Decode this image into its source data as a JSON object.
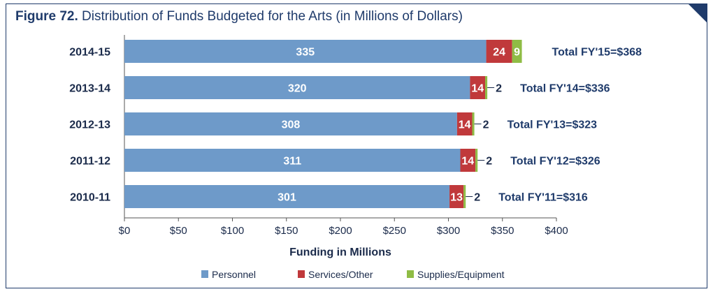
{
  "figure": {
    "label": "Figure 72.",
    "caption": "Distribution of Funds Budgeted for the Arts (in Millions of Dollars)"
  },
  "colors": {
    "personnel": "#6e9ac9",
    "services": "#c0393b",
    "supplies": "#8fbc45",
    "text": "#1a2a4a",
    "accent": "#1f3b6b"
  },
  "chart_data": {
    "type": "bar",
    "orientation": "horizontal",
    "stacked": true,
    "title": "Distribution of Funds Budgeted for the Arts (in Millions of Dollars)",
    "xlabel": "Funding in Millions",
    "ylabel": "",
    "xlim": [
      0,
      400
    ],
    "x_ticks": [
      0,
      50,
      100,
      150,
      200,
      250,
      300,
      350,
      400
    ],
    "x_tick_labels": [
      "$0",
      "$50",
      "$100",
      "$150",
      "$200",
      "$250",
      "$300",
      "$350",
      "$400"
    ],
    "categories": [
      "2014-15",
      "2013-14",
      "2012-13",
      "2011-12",
      "2010-11"
    ],
    "series": [
      {
        "name": "Personnel",
        "values": [
          335,
          320,
          308,
          311,
          301
        ]
      },
      {
        "name": "Services/Other",
        "values": [
          24,
          14,
          14,
          14,
          13
        ]
      },
      {
        "name": "Supplies/Equipment",
        "values": [
          9,
          2,
          2,
          2,
          2
        ]
      }
    ],
    "totals": [
      "Total FY'15=$368",
      "Total FY'14=$336",
      "Total FY'13=$323",
      "Total FY'12=$326",
      "Total FY'11=$316"
    ],
    "legend_position": "bottom"
  }
}
